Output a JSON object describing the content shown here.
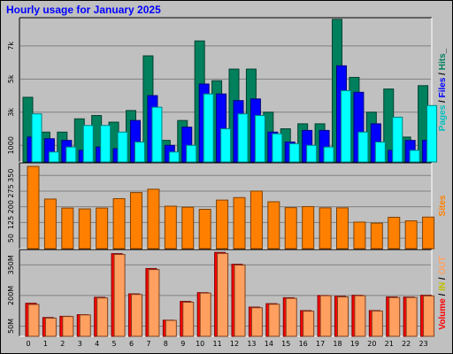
{
  "title": "Hourly usage for January 2025",
  "colors": {
    "background": "#c0c0c0",
    "plot_bg": "#c0c0c0",
    "hits": "#00805c",
    "files": "#0000ff",
    "pages": "#00ffff",
    "sites": "#ff8000",
    "volume": "#ff0000",
    "in": "#ffff00",
    "out": "#ffa060",
    "title": "#0000ff"
  },
  "chart_data": [
    {
      "type": "bar",
      "name": "hits-files-pages",
      "categories": [
        "0",
        "1",
        "2",
        "3",
        "4",
        "5",
        "6",
        "7",
        "8",
        "9",
        "10",
        "11",
        "12",
        "13",
        "14",
        "15",
        "16",
        "17",
        "18",
        "19",
        "20",
        "21",
        "22",
        "23"
      ],
      "ylim": [
        0,
        8700
      ],
      "yticks": [
        {
          "value": 1000,
          "label": "1000"
        },
        {
          "value": 3000,
          "label": "3k"
        },
        {
          "value": 5000,
          "label": "5k"
        },
        {
          "value": 7000,
          "label": "7k"
        }
      ],
      "side_label_parts": [
        {
          "text": "Pages",
          "color": "#00c0c0"
        },
        {
          "text": " / ",
          "color": "#000000"
        },
        {
          "text": "Files",
          "color": "#0000ff"
        },
        {
          "text": " / ",
          "color": "#000000"
        },
        {
          "text": "Hits",
          "color": "#008060"
        },
        {
          "text": "_",
          "color": "#000000"
        }
      ],
      "series": [
        {
          "values": [
            3900,
            1800,
            1800,
            2600,
            2800,
            2400,
            3100,
            6400,
            1300,
            2500,
            7300,
            4900,
            5600,
            5600,
            3000,
            2000,
            2300,
            2300,
            8600,
            5100,
            3000,
            4400,
            1500,
            4600
          ]
        },
        {
          "values": [
            1500,
            1400,
            1300,
            700,
            900,
            800,
            2500,
            4000,
            1000,
            2100,
            4700,
            4100,
            3700,
            3800,
            1800,
            1200,
            1900,
            1900,
            5800,
            4200,
            2300,
            700,
            1300,
            1300
          ]
        },
        {
          "values": [
            2900,
            600,
            900,
            2200,
            2200,
            1800,
            1200,
            3300,
            600,
            1000,
            4100,
            2000,
            2900,
            2800,
            1700,
            1100,
            1000,
            900,
            4300,
            1800,
            1200,
            2700,
            700,
            3400
          ]
        }
      ]
    },
    {
      "type": "bar",
      "name": "sites",
      "categories": [
        "0",
        "1",
        "2",
        "3",
        "4",
        "5",
        "6",
        "7",
        "8",
        "9",
        "10",
        "11",
        "12",
        "13",
        "14",
        "15",
        "16",
        "17",
        "18",
        "19",
        "20",
        "21",
        "22",
        "23"
      ],
      "ylim": [
        0,
        410
      ],
      "yticks": [
        {
          "value": 50,
          "label": "50"
        },
        {
          "value": 125,
          "label": "125"
        },
        {
          "value": 200,
          "label": "200"
        },
        {
          "value": 275,
          "label": "275"
        },
        {
          "value": 350,
          "label": "350"
        }
      ],
      "side_label_parts": [
        {
          "text": "Sites",
          "color": "#ff8000"
        }
      ],
      "series": [
        {
          "values": [
            393,
            237,
            194,
            190,
            194,
            239,
            268,
            284,
            203,
            198,
            188,
            232,
            244,
            275,
            224,
            196,
            201,
            195,
            195,
            127,
            122,
            150,
            133,
            151
          ]
        }
      ]
    },
    {
      "type": "bar",
      "name": "volume",
      "categories": [
        "0",
        "1",
        "2",
        "3",
        "4",
        "5",
        "6",
        "7",
        "8",
        "9",
        "10",
        "11",
        "12",
        "13",
        "14",
        "15",
        "16",
        "17",
        "18",
        "19",
        "20",
        "21",
        "22",
        "23"
      ],
      "ylim": [
        0,
        425
      ],
      "yticks": [
        {
          "value": 50,
          "label": "50M"
        },
        {
          "value": 200,
          "label": "200M"
        },
        {
          "value": 350,
          "label": "350M"
        }
      ],
      "side_label_parts": [
        {
          "text": "Volume",
          "color": "#ff0000"
        },
        {
          "text": " / ",
          "color": "#000000"
        },
        {
          "text": "IN",
          "color": "#c0c000"
        },
        {
          "text": " / ",
          "color": "#000000"
        },
        {
          "text": "OUT",
          "color": "#ffa060"
        }
      ],
      "series": [
        {
          "values": [
            162,
            92,
            98,
            106,
            191,
            405,
            208,
            332,
            79,
            171,
            214,
            411,
            353,
            143,
            160,
            189,
            126,
            200,
            196,
            201,
            126,
            193,
            192,
            201
          ]
        },
        {
          "values": [
            156,
            89,
            97,
            105,
            188,
            401,
            205,
            327,
            78,
            167,
            212,
            406,
            349,
            140,
            157,
            186,
            123,
            199,
            193,
            199,
            124,
            190,
            190,
            198
          ]
        }
      ]
    }
  ]
}
